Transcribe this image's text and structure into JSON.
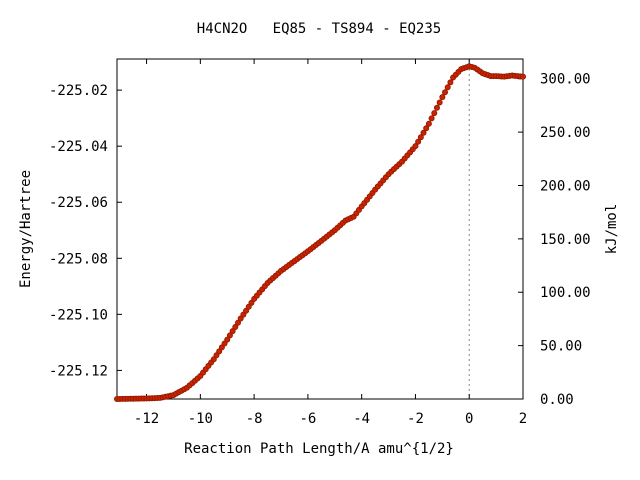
{
  "chart_data": {
    "type": "scatter",
    "title": "H4CN2O   EQ85 - TS894 - EQ235",
    "xlabel": "Reaction Path Length/A amu^{1/2}",
    "ylabel": "Energy/Hartree",
    "y2label": "kJ/mol",
    "xlim": [
      -13.1,
      2.0
    ],
    "ylim": [
      -225.1302,
      -225.0089
    ],
    "x_ticks": [
      "-12",
      "-10",
      "-8",
      "-6",
      "-4",
      "-2",
      "0",
      "2"
    ],
    "x_tick_values": [
      -12,
      -10,
      -8,
      -6,
      -4,
      -2,
      0,
      2
    ],
    "y_ticks": [
      "-225.02",
      "-225.04",
      "-225.06",
      "-225.08",
      "-225.10",
      "-225.12"
    ],
    "y_tick_values": [
      -225.02,
      -225.04,
      -225.06,
      -225.08,
      -225.1,
      -225.12
    ],
    "y2_ticks": [
      "0.00",
      "50.00",
      "100.00",
      "150.00",
      "200.00",
      "250.00",
      "300.00"
    ],
    "y2_tick_values": [
      0,
      50,
      100,
      150,
      200,
      250,
      300
    ],
    "y2_reference_energy": -225.1302,
    "hartree_to_kj": 2625.5,
    "ts_marker_x": 0,
    "grid": false,
    "colors": {
      "marker": "#cc2200",
      "marker_edge": "#8b1a00",
      "line": "#d46a00",
      "axis": "#000000",
      "ts_line": "#888888"
    },
    "series": [
      {
        "x": [
          -13.1,
          -12.5,
          -12.0,
          -11.5,
          -11.0,
          -10.5,
          -10.0,
          -9.5,
          -9.0,
          -8.5,
          -8.0,
          -7.5,
          -7.0,
          -6.5,
          -6.0,
          -5.5,
          -5.0,
          -4.6,
          -4.3,
          -4.0,
          -3.5,
          -3.0,
          -2.5,
          -2.0,
          -1.5,
          -1.0,
          -0.6,
          -0.3,
          0.0,
          0.2,
          0.5,
          0.8,
          1.0,
          1.3,
          1.6,
          2.0
        ],
        "y": [
          -225.1302,
          -225.1301,
          -225.13,
          -225.1298,
          -225.1288,
          -225.1262,
          -225.122,
          -225.116,
          -225.109,
          -225.1015,
          -225.0945,
          -225.0888,
          -225.0845,
          -225.081,
          -225.0775,
          -225.0738,
          -225.07,
          -225.0665,
          -225.0652,
          -225.0615,
          -225.0555,
          -225.05,
          -225.0455,
          -225.04,
          -225.032,
          -225.0225,
          -225.0155,
          -225.0125,
          -225.0115,
          -225.012,
          -225.014,
          -225.015,
          -225.015,
          -225.0152,
          -225.0148,
          -225.0152
        ]
      }
    ]
  }
}
